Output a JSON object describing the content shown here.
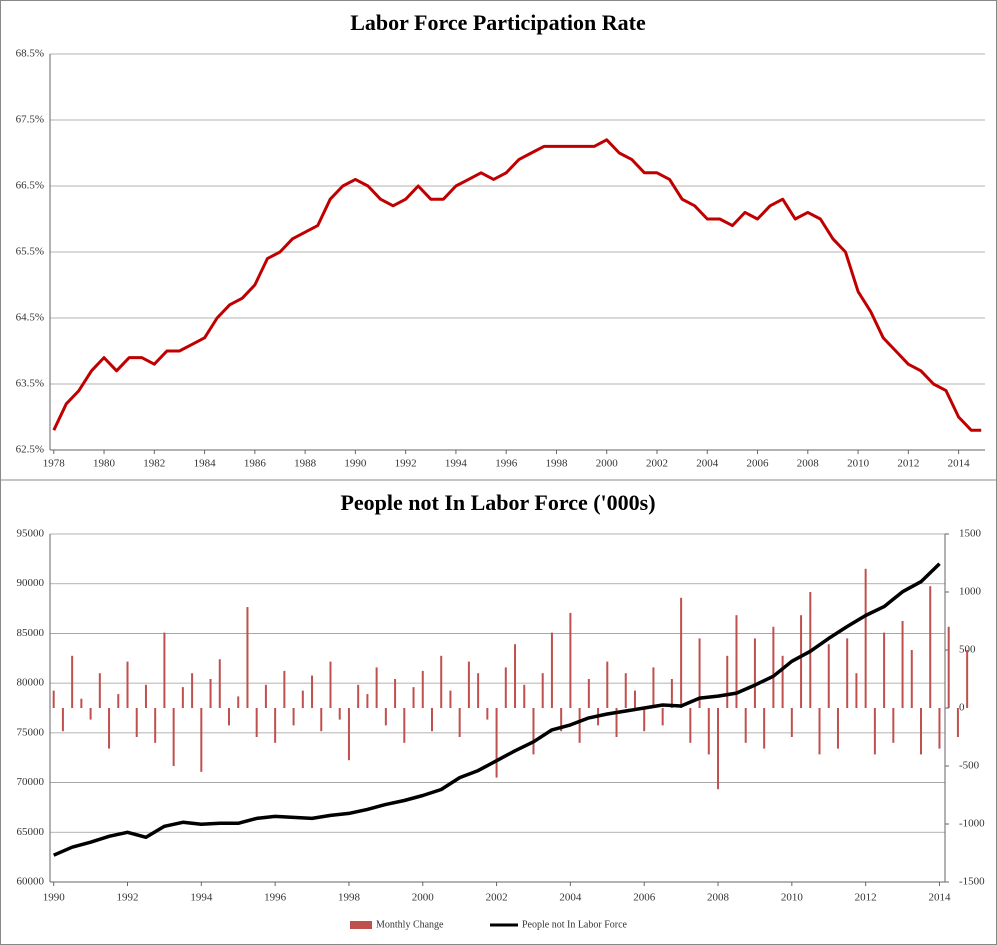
{
  "chart_data": [
    {
      "type": "line",
      "title": "Labor Force Participation Rate",
      "xlim": [
        1977.85,
        2015.05
      ],
      "xticks": [
        1978,
        1980,
        1982,
        1984,
        1986,
        1988,
        1990,
        1992,
        1994,
        1996,
        1998,
        2000,
        2002,
        2004,
        2006,
        2008,
        2010,
        2012,
        2014
      ],
      "ylim": [
        62.5,
        68.5
      ],
      "yticks": [
        {
          "value": 62.5,
          "label": "62.5%"
        },
        {
          "value": 63.5,
          "label": "63.5%"
        },
        {
          "value": 64.5,
          "label": "64.5%"
        },
        {
          "value": 65.5,
          "label": "65.5%"
        },
        {
          "value": 66.5,
          "label": "66.5%"
        },
        {
          "value": 67.5,
          "label": "67.5%"
        },
        {
          "value": 68.5,
          "label": "68.5%"
        }
      ],
      "grid": true,
      "series": [
        {
          "name": null,
          "color": "#c00000",
          "x": [
            1978.0,
            1978.5,
            1979.0,
            1979.5,
            1980.0,
            1980.5,
            1981.0,
            1981.5,
            1982.0,
            1982.5,
            1983.0,
            1983.5,
            1984.0,
            1984.5,
            1985.0,
            1985.5,
            1986.0,
            1986.5,
            1987.0,
            1987.5,
            1988.0,
            1988.5,
            1989.0,
            1989.5,
            1990.0,
            1990.5,
            1991.0,
            1991.5,
            1992.0,
            1992.5,
            1993.0,
            1993.5,
            1994.0,
            1994.5,
            1995.0,
            1995.5,
            1996.0,
            1996.5,
            1997.0,
            1997.5,
            1998.0,
            1998.5,
            1999.0,
            1999.5,
            2000.0,
            2000.5,
            2001.0,
            2001.5,
            2002.0,
            2002.5,
            2003.0,
            2003.5,
            2004.0,
            2004.5,
            2005.0,
            2005.5,
            2006.0,
            2006.5,
            2007.0,
            2007.5,
            2008.0,
            2008.5,
            2009.0,
            2009.5,
            2010.0,
            2010.5,
            2011.0,
            2011.5,
            2012.0,
            2012.5,
            2013.0,
            2013.5,
            2014.0,
            2014.5,
            2014.9
          ],
          "values": [
            62.8,
            63.2,
            63.4,
            63.7,
            63.9,
            63.7,
            63.9,
            63.9,
            63.8,
            64.0,
            64.0,
            64.1,
            64.2,
            64.5,
            64.7,
            64.8,
            65.0,
            65.4,
            65.5,
            65.7,
            65.8,
            65.9,
            66.3,
            66.5,
            66.6,
            66.5,
            66.3,
            66.2,
            66.3,
            66.5,
            66.3,
            66.3,
            66.5,
            66.6,
            66.7,
            66.6,
            66.7,
            66.9,
            67.0,
            67.1,
            67.1,
            67.1,
            67.1,
            67.1,
            67.2,
            67.0,
            66.9,
            66.7,
            66.7,
            66.6,
            66.3,
            66.2,
            66.0,
            66.0,
            65.9,
            66.1,
            66.0,
            66.2,
            66.3,
            66.0,
            66.1,
            66.0,
            65.7,
            65.5,
            64.9,
            64.6,
            64.2,
            64.0,
            63.8,
            63.7,
            63.5,
            63.4,
            63.0,
            62.8,
            62.8
          ]
        }
      ]
    },
    {
      "type": "combo",
      "title": "People not In Labor Force ('000s)",
      "xlim": [
        1989.9,
        2014.15
      ],
      "xticks": [
        1990,
        1992,
        1994,
        1996,
        1998,
        2000,
        2002,
        2004,
        2006,
        2008,
        2010,
        2012,
        2014
      ],
      "ylim": [
        60000,
        95000
      ],
      "yticks": [
        60000,
        65000,
        70000,
        75000,
        80000,
        85000,
        90000,
        95000
      ],
      "y2lim": [
        -1500,
        1500
      ],
      "y2ticks": [
        -1500,
        -1000,
        -500,
        0,
        500,
        1000,
        1500
      ],
      "grid": true,
      "legend": "bottom",
      "series": [
        {
          "name": "Monthly Change",
          "type": "bar",
          "axis": "y2",
          "color": "#c0504d",
          "x": [
            1990.0,
            1990.25,
            1990.5,
            1990.75,
            1991.0,
            1991.25,
            1991.5,
            1991.75,
            1992.0,
            1992.25,
            1992.5,
            1992.75,
            1993.0,
            1993.25,
            1993.5,
            1993.75,
            1994.0,
            1994.25,
            1994.5,
            1994.75,
            1995.0,
            1995.25,
            1995.5,
            1995.75,
            1996.0,
            1996.25,
            1996.5,
            1996.75,
            1997.0,
            1997.25,
            1997.5,
            1997.75,
            1998.0,
            1998.25,
            1998.5,
            1998.75,
            1999.0,
            1999.25,
            1999.5,
            1999.75,
            2000.0,
            2000.25,
            2000.5,
            2000.75,
            2001.0,
            2001.25,
            2001.5,
            2001.75,
            2002.0,
            2002.25,
            2002.5,
            2002.75,
            2003.0,
            2003.25,
            2003.5,
            2003.75,
            2004.0,
            2004.25,
            2004.5,
            2004.75,
            2005.0,
            2005.25,
            2005.5,
            2005.75,
            2006.0,
            2006.25,
            2006.5,
            2006.75,
            2007.0,
            2007.25,
            2007.5,
            2007.75,
            2008.0,
            2008.25,
            2008.5,
            2008.75,
            2009.0,
            2009.25,
            2009.5,
            2009.75,
            2010.0,
            2010.25,
            2010.5,
            2010.75,
            2011.0,
            2011.25,
            2011.5,
            2011.75,
            2012.0,
            2012.25,
            2012.5,
            2012.75,
            2013.0,
            2013.25,
            2013.5,
            2013.75,
            2014.0,
            2014.25,
            2014.5,
            2014.75
          ],
          "values": [
            150,
            -200,
            450,
            80,
            -100,
            300,
            -350,
            120,
            400,
            -250,
            200,
            -300,
            650,
            -500,
            180,
            300,
            -550,
            250,
            420,
            -150,
            100,
            870,
            -250,
            200,
            -300,
            320,
            -150,
            150,
            280,
            -200,
            400,
            -100,
            -450,
            200,
            120,
            350,
            -150,
            250,
            -300,
            180,
            320,
            -200,
            450,
            150,
            -250,
            400,
            300,
            -100,
            -600,
            350,
            550,
            200,
            -400,
            300,
            650,
            -200,
            820,
            -300,
            250,
            -150,
            400,
            -250,
            300,
            150,
            -200,
            350,
            -150,
            250,
            950,
            -300,
            600,
            -400,
            -700,
            450,
            800,
            -300,
            600,
            -350,
            700,
            450,
            -250,
            800,
            1000,
            -400,
            550,
            -350,
            600,
            300,
            1200,
            -400,
            650,
            -300,
            750,
            500,
            -400,
            1050,
            -350,
            700,
            -250,
            500
          ]
        },
        {
          "name": "People not In Labor Force",
          "type": "line",
          "color": "#000000",
          "x": [
            1990.0,
            1990.5,
            1991.0,
            1991.5,
            1992.0,
            1992.5,
            1993.0,
            1993.5,
            1994.0,
            1994.5,
            1995.0,
            1995.5,
            1996.0,
            1996.5,
            1997.0,
            1997.5,
            1998.0,
            1998.5,
            1999.0,
            1999.5,
            2000.0,
            2000.5,
            2001.0,
            2001.5,
            2002.0,
            2002.5,
            2003.0,
            2003.5,
            2004.0,
            2004.5,
            2005.0,
            2005.5,
            2006.0,
            2006.5,
            2007.0,
            2007.5,
            2008.0,
            2008.5,
            2009.0,
            2009.5,
            2010.0,
            2010.5,
            2011.0,
            2011.5,
            2012.0,
            2012.5,
            2013.0,
            2013.5,
            2014.0
          ],
          "values": [
            62700,
            63500,
            64000,
            64600,
            65000,
            64500,
            65600,
            66000,
            65800,
            65900,
            65900,
            66400,
            66600,
            66500,
            66400,
            66700,
            66900,
            67300,
            67800,
            68200,
            68700,
            69300,
            70500,
            71200,
            72200,
            73200,
            74100,
            75300,
            75800,
            76500,
            76900,
            77200,
            77500,
            77800,
            77700,
            78500,
            78700,
            79000,
            79800,
            80700,
            82200,
            83200,
            84500,
            85700,
            86800,
            87700,
            89200,
            90200,
            92000
          ]
        }
      ]
    }
  ]
}
